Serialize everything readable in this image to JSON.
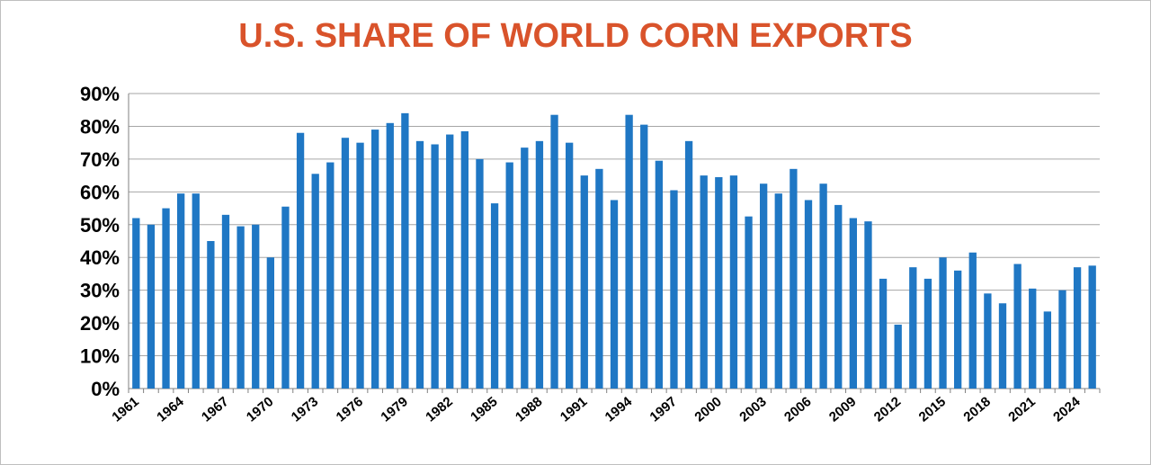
{
  "chart_data": {
    "type": "bar",
    "title": "U.S. SHARE OF WORLD CORN EXPORTS",
    "xlabel": "",
    "ylabel": "",
    "ylim": [
      0,
      90
    ],
    "y_ticks": [
      "0%",
      "10%",
      "20%",
      "30%",
      "40%",
      "50%",
      "60%",
      "70%",
      "80%",
      "90%"
    ],
    "x_tick_labels": [
      "1961",
      "1964",
      "1967",
      "1970",
      "1973",
      "1976",
      "1979",
      "1982",
      "1985",
      "1988",
      "1991",
      "1994",
      "1997",
      "2000",
      "2003",
      "2006",
      "2009",
      "2012",
      "2015",
      "2018",
      "2021",
      "2024"
    ],
    "categories": [
      "1961",
      "1962",
      "1963",
      "1964",
      "1965",
      "1966",
      "1967",
      "1968",
      "1969",
      "1970",
      "1971",
      "1972",
      "1973",
      "1974",
      "1975",
      "1976",
      "1977",
      "1978",
      "1979",
      "1980",
      "1981",
      "1982",
      "1983",
      "1984",
      "1985",
      "1986",
      "1987",
      "1988",
      "1989",
      "1990",
      "1991",
      "1992",
      "1993",
      "1994",
      "1995",
      "1996",
      "1997",
      "1998",
      "1999",
      "2000",
      "2001",
      "2002",
      "2003",
      "2004",
      "2005",
      "2006",
      "2007",
      "2008",
      "2009",
      "2010",
      "2011",
      "2012",
      "2013",
      "2014",
      "2015",
      "2016",
      "2017",
      "2018",
      "2019",
      "2020",
      "2021",
      "2022",
      "2023",
      "2024",
      "2025"
    ],
    "values": [
      52,
      50,
      55,
      59.5,
      59.5,
      45,
      53,
      49.5,
      50,
      40,
      55.5,
      78,
      65.5,
      69,
      76.5,
      75,
      79,
      81,
      84,
      75.5,
      74.5,
      77.5,
      78.5,
      70,
      56.5,
      69,
      73.5,
      75.5,
      83.5,
      75,
      65,
      67,
      57.5,
      83.5,
      80.5,
      69.5,
      60.5,
      75.5,
      65,
      64.5,
      65,
      52.5,
      62.5,
      59.5,
      67,
      57.5,
      62.5,
      56,
      52,
      51,
      33.5,
      19.5,
      37,
      33.5,
      40,
      36,
      41.5,
      29,
      26,
      38,
      30.5,
      23.5,
      30,
      37,
      37.5
    ],
    "colors": {
      "bar": "#1f77c4",
      "title": "#d9532b",
      "grid": "#a6a6a6"
    },
    "grid": true,
    "legend": "none"
  }
}
